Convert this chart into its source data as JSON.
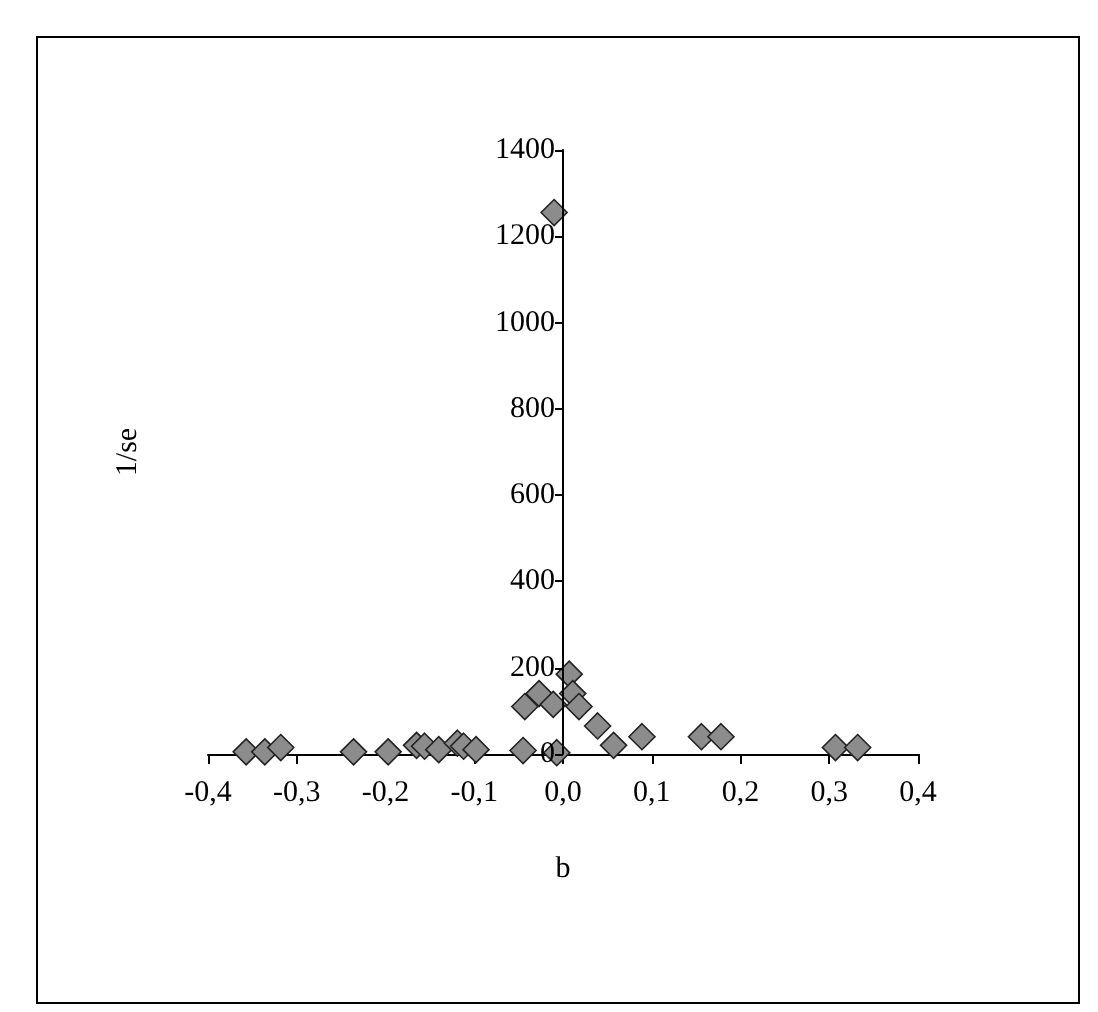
{
  "chart_data": {
    "type": "scatter",
    "xlabel": "b",
    "ylabel": "1/se",
    "marker": "diamond",
    "grid": false,
    "series": [
      {
        "color": "#8c8c8c",
        "x": [
          -0.357,
          -0.336,
          -0.318,
          -0.236,
          -0.197,
          -0.165,
          -0.156,
          -0.14,
          -0.119,
          -0.112,
          -0.098,
          -0.045,
          -0.043,
          -0.027,
          -0.011,
          -0.007,
          0.007,
          0.011,
          0.018,
          0.039,
          0.057,
          0.089,
          0.156,
          0.178,
          0.307,
          0.332,
          -0.01
        ],
        "values": [
          5,
          5,
          15,
          5,
          5,
          20,
          18,
          10,
          25,
          18,
          10,
          8,
          110,
          140,
          115,
          3,
          185,
          140,
          110,
          65,
          20,
          40,
          40,
          40,
          15,
          15,
          1255
        ]
      }
    ],
    "xlim": [
      -0.4,
      0.4
    ],
    "ylim": [
      0,
      1400
    ],
    "xticks": [
      {
        "value": -0.4,
        "label": "-0,4"
      },
      {
        "value": -0.3,
        "label": "-0,3"
      },
      {
        "value": -0.2,
        "label": "-0,2"
      },
      {
        "value": -0.1,
        "label": "-0,1"
      },
      {
        "value": 0,
        "label": "0,0"
      },
      {
        "value": 0.1,
        "label": "0,1"
      },
      {
        "value": 0.2,
        "label": "0,2"
      },
      {
        "value": 0.3,
        "label": "0,3"
      },
      {
        "value": 0.4,
        "label": "0,4"
      }
    ],
    "yticks": [
      0,
      200,
      400,
      600,
      800,
      1000,
      1200,
      1400
    ]
  }
}
